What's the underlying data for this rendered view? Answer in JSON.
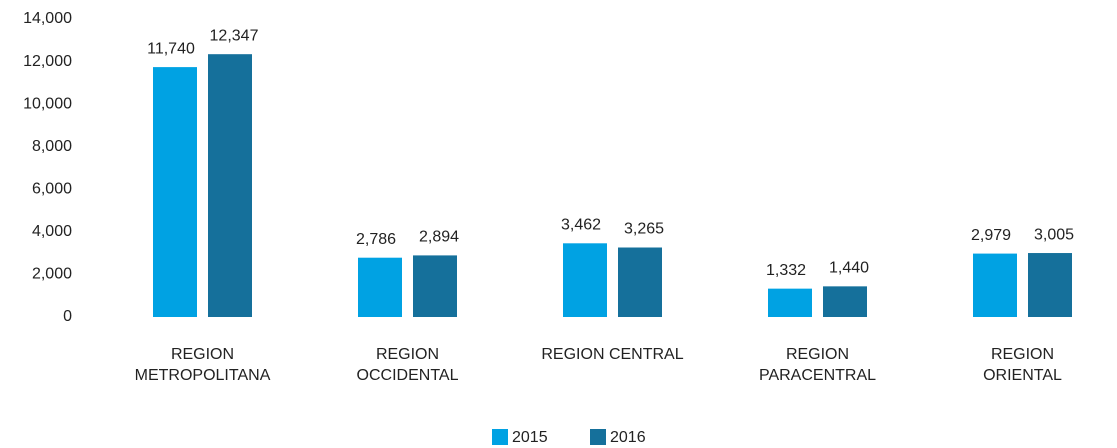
{
  "chart_data": {
    "type": "bar",
    "categories": [
      "REGION\nMETROPOLITANA",
      "REGION\nOCCIDENTAL",
      "REGION CENTRAL",
      "REGION\nPARACENTRAL",
      "REGION\nORIENTAL"
    ],
    "series": [
      {
        "name": "2015",
        "color": "#00a2e3",
        "values": [
          11740,
          2786,
          3462,
          1332,
          2979
        ],
        "value_labels": [
          "11,740",
          "2,786",
          "3,462",
          "1,332",
          "2,979"
        ]
      },
      {
        "name": "2016",
        "color": "#15709b",
        "values": [
          12347,
          2894,
          3265,
          1440,
          3005
        ],
        "value_labels": [
          "12,347",
          "2,894",
          "3,265",
          "1,440",
          "3,005"
        ]
      }
    ],
    "ylim": [
      0,
      14000
    ],
    "yticks": [
      0,
      {
        "value": 2000,
        "label": "2,000"
      },
      {
        "value": 4000,
        "label": "4,000"
      },
      {
        "value": 6000,
        "label": "6,000"
      },
      {
        "value": 8000,
        "label": "8,000"
      },
      {
        "value": 10000,
        "label": "10,000"
      },
      {
        "value": 12000,
        "label": "12,000"
      },
      {
        "value": 14000,
        "label": "14,000"
      }
    ],
    "grid": false,
    "legend": "bottom"
  }
}
